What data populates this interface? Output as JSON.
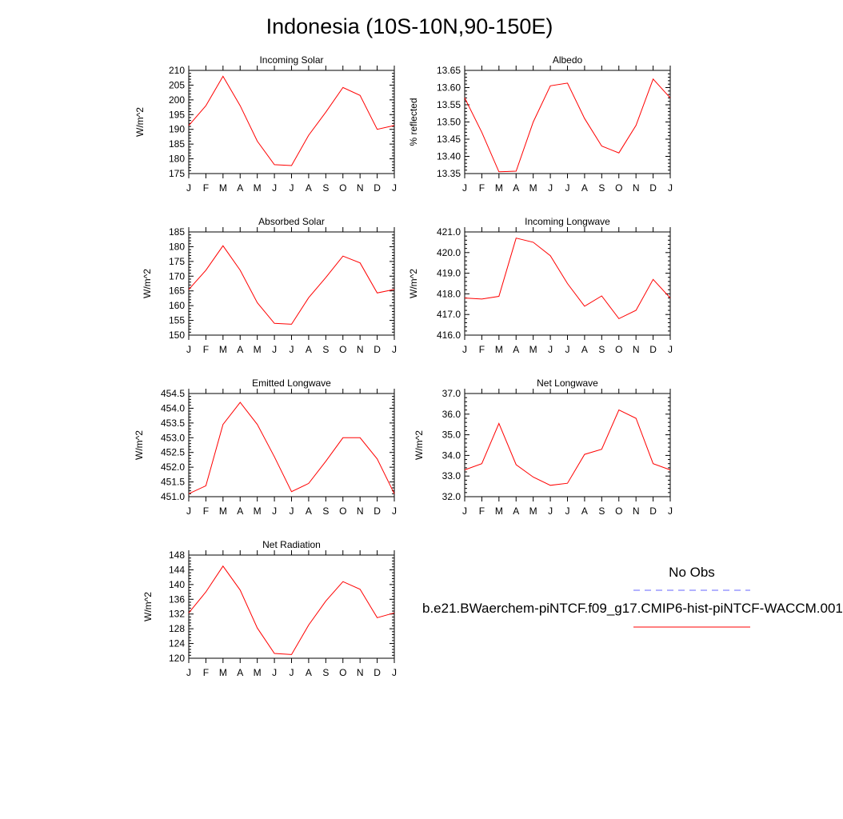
{
  "page": {
    "title": "Indonesia (10S-10N,90-150E)"
  },
  "legend": {
    "obs_label": "No Obs",
    "obs_color": "#6666ff",
    "model_label": "b.e21.BWaerchem-piNTCF.f09_g17.CMIP6-hist-piNTCF-WACCM.001",
    "model_color": "#ff0000"
  },
  "chart_data": [
    {
      "type": "line",
      "title": "Incoming Solar",
      "ylabel": "W/m^2",
      "ylim": [
        175,
        210
      ],
      "yticks": [
        "175",
        "180",
        "185",
        "190",
        "195",
        "200",
        "205",
        "210"
      ],
      "x": [
        "J",
        "F",
        "M",
        "A",
        "M",
        "J",
        "J",
        "A",
        "S",
        "O",
        "N",
        "D",
        "J"
      ],
      "series": [
        {
          "values": [
            191.3,
            198.0,
            208.0,
            198.0,
            186.0,
            178.0,
            177.7,
            188.0,
            195.8,
            204.2,
            201.5,
            190.0,
            191.3
          ]
        }
      ]
    },
    {
      "type": "line",
      "title": "Albedo",
      "ylabel": "% reflected",
      "ylim": [
        13.35,
        13.65
      ],
      "yticks": [
        "13.35",
        "13.40",
        "13.45",
        "13.50",
        "13.55",
        "13.60",
        "13.65"
      ],
      "x": [
        "J",
        "F",
        "M",
        "A",
        "M",
        "J",
        "J",
        "A",
        "S",
        "O",
        "N",
        "D",
        "J"
      ],
      "series": [
        {
          "values": [
            13.57,
            13.47,
            13.355,
            13.357,
            13.5,
            13.605,
            13.613,
            13.51,
            13.43,
            13.41,
            13.49,
            13.625,
            13.57
          ]
        }
      ]
    },
    {
      "type": "line",
      "title": "Absorbed Solar",
      "ylabel": "W/m^2",
      "ylim": [
        150,
        185
      ],
      "yticks": [
        "150",
        "155",
        "160",
        "165",
        "170",
        "175",
        "180",
        "185"
      ],
      "x": [
        "J",
        "F",
        "M",
        "A",
        "M",
        "J",
        "J",
        "A",
        "S",
        "O",
        "N",
        "D",
        "J"
      ],
      "series": [
        {
          "values": [
            165.5,
            172.0,
            180.3,
            172.0,
            161.0,
            154.0,
            153.7,
            162.7,
            169.5,
            176.8,
            174.5,
            164.3,
            165.5
          ]
        }
      ]
    },
    {
      "type": "line",
      "title": "Incoming Longwave",
      "ylabel": "W/m^2",
      "ylim": [
        416.0,
        421.0
      ],
      "yticks": [
        "416.0",
        "417.0",
        "418.0",
        "419.0",
        "420.0",
        "421.0"
      ],
      "x": [
        "J",
        "F",
        "M",
        "A",
        "M",
        "J",
        "J",
        "A",
        "S",
        "O",
        "N",
        "D",
        "J"
      ],
      "series": [
        {
          "values": [
            417.8,
            417.75,
            417.88,
            420.7,
            420.5,
            419.85,
            418.5,
            417.4,
            417.9,
            416.8,
            417.2,
            418.7,
            417.8
          ]
        }
      ]
    },
    {
      "type": "line",
      "title": "Emitted Longwave",
      "ylabel": "W/m^2",
      "ylim": [
        451.0,
        454.5
      ],
      "yticks": [
        "451.0",
        "451.5",
        "452.0",
        "452.5",
        "453.0",
        "453.5",
        "454.0",
        "454.5"
      ],
      "x": [
        "J",
        "F",
        "M",
        "A",
        "M",
        "J",
        "J",
        "A",
        "S",
        "O",
        "N",
        "D",
        "J"
      ],
      "series": [
        {
          "values": [
            451.1,
            451.37,
            453.45,
            454.2,
            453.45,
            452.35,
            451.17,
            451.45,
            452.2,
            453.0,
            453.0,
            452.28,
            451.1
          ]
        }
      ]
    },
    {
      "type": "line",
      "title": "Net Longwave",
      "ylabel": "W/m^2",
      "ylim": [
        32.0,
        37.0
      ],
      "yticks": [
        "32.0",
        "33.0",
        "34.0",
        "35.0",
        "36.0",
        "37.0"
      ],
      "x": [
        "J",
        "F",
        "M",
        "A",
        "M",
        "J",
        "J",
        "A",
        "S",
        "O",
        "N",
        "D",
        "J"
      ],
      "series": [
        {
          "values": [
            33.3,
            33.6,
            35.55,
            33.55,
            32.95,
            32.55,
            32.65,
            34.05,
            34.3,
            36.2,
            35.8,
            33.6,
            33.3
          ]
        }
      ]
    },
    {
      "type": "line",
      "title": "Net Radiation",
      "ylabel": "W/m^2",
      "ylim": [
        120,
        148
      ],
      "yticks": [
        "120",
        "124",
        "128",
        "132",
        "136",
        "140",
        "144",
        "148"
      ],
      "x": [
        "J",
        "F",
        "M",
        "A",
        "M",
        "J",
        "J",
        "A",
        "S",
        "O",
        "N",
        "D",
        "J"
      ],
      "series": [
        {
          "values": [
            132.3,
            138.0,
            145.0,
            138.5,
            128.2,
            121.3,
            121.0,
            129.0,
            135.5,
            140.8,
            138.7,
            131.0,
            132.3
          ]
        }
      ]
    }
  ]
}
